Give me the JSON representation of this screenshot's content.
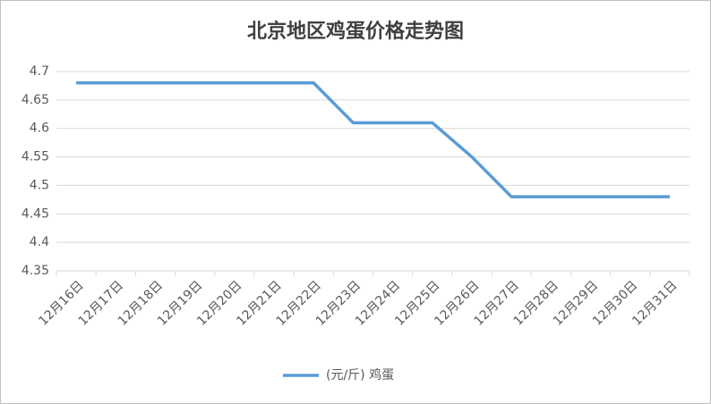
{
  "chart_data": {
    "type": "line",
    "title": "北京地区鸡蛋价格走势图",
    "categories": [
      "12月16日",
      "12月17日",
      "12月18日",
      "12月19日",
      "12月20日",
      "12月21日",
      "12月22日",
      "12月23日",
      "12月24日",
      "12月25日",
      "12月26日",
      "12月27日",
      "12月28日",
      "12月29日",
      "12月30日",
      "12月31日"
    ],
    "series": [
      {
        "name": "(元/斤) 鸡蛋",
        "color": "#5b9bd5",
        "values": [
          4.68,
          4.68,
          4.68,
          4.68,
          4.68,
          4.68,
          4.68,
          4.61,
          4.61,
          4.61,
          4.55,
          4.48,
          4.48,
          4.48,
          4.48,
          4.48
        ]
      }
    ],
    "ylim": [
      4.35,
      4.7
    ],
    "yticks": [
      4.35,
      4.4,
      4.45,
      4.5,
      4.55,
      4.6,
      4.65,
      4.7
    ],
    "grid": true,
    "legend": "bottom"
  }
}
